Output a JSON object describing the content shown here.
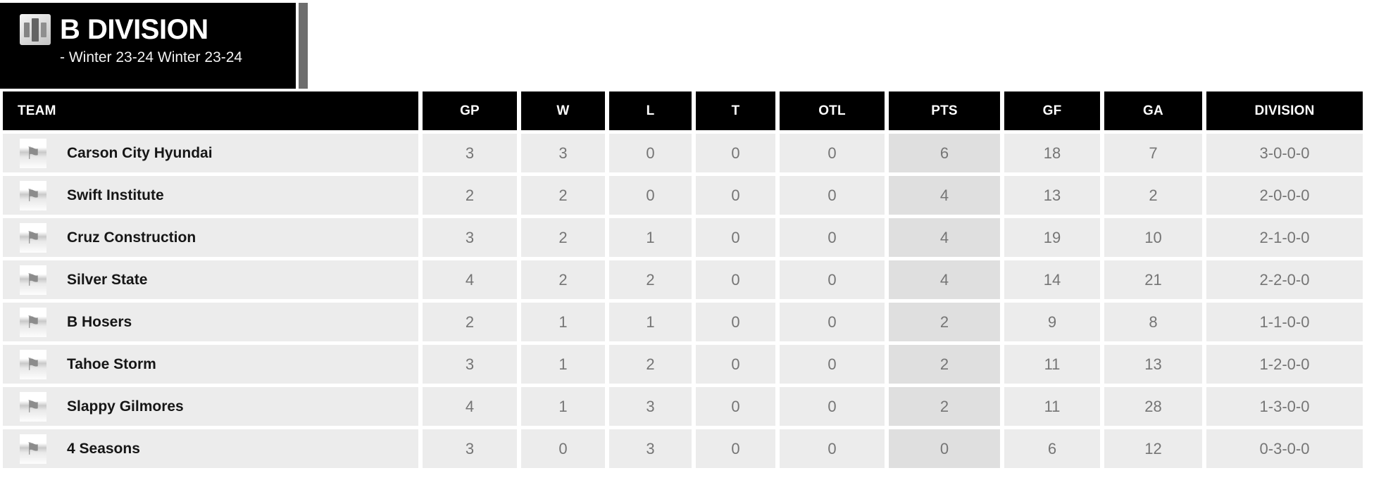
{
  "header": {
    "title": "B DIVISION",
    "subtitle": "- Winter 23-24 Winter 23-24",
    "icon": "stats-bars-icon"
  },
  "table": {
    "columns": [
      "TEAM",
      "GP",
      "W",
      "L",
      "T",
      "OTL",
      "PTS",
      "GF",
      "GA",
      "DIVISION"
    ],
    "column_keys": [
      "team",
      "gp",
      "w",
      "l",
      "t",
      "otl",
      "pts",
      "gf",
      "ga",
      "division"
    ],
    "rows": [
      {
        "team": "Carson City Hyundai",
        "gp": "3",
        "w": "3",
        "l": "0",
        "t": "0",
        "otl": "0",
        "pts": "6",
        "gf": "18",
        "ga": "7",
        "division": "3-0-0-0"
      },
      {
        "team": "Swift Institute",
        "gp": "2",
        "w": "2",
        "l": "0",
        "t": "0",
        "otl": "0",
        "pts": "4",
        "gf": "13",
        "ga": "2",
        "division": "2-0-0-0"
      },
      {
        "team": "Cruz Construction",
        "gp": "3",
        "w": "2",
        "l": "1",
        "t": "0",
        "otl": "0",
        "pts": "4",
        "gf": "19",
        "ga": "10",
        "division": "2-1-0-0"
      },
      {
        "team": "Silver State",
        "gp": "4",
        "w": "2",
        "l": "2",
        "t": "0",
        "otl": "0",
        "pts": "4",
        "gf": "14",
        "ga": "21",
        "division": "2-2-0-0"
      },
      {
        "team": "B Hosers",
        "gp": "2",
        "w": "1",
        "l": "1",
        "t": "0",
        "otl": "0",
        "pts": "2",
        "gf": "9",
        "ga": "8",
        "division": "1-1-0-0"
      },
      {
        "team": "Tahoe Storm",
        "gp": "3",
        "w": "1",
        "l": "2",
        "t": "0",
        "otl": "0",
        "pts": "2",
        "gf": "11",
        "ga": "13",
        "division": "1-2-0-0"
      },
      {
        "team": "Slappy Gilmores",
        "gp": "4",
        "w": "1",
        "l": "3",
        "t": "0",
        "otl": "0",
        "pts": "2",
        "gf": "11",
        "ga": "28",
        "division": "1-3-0-0"
      },
      {
        "team": "4 Seasons",
        "gp": "3",
        "w": "0",
        "l": "3",
        "t": "0",
        "otl": "0",
        "pts": "0",
        "gf": "6",
        "ga": "12",
        "division": "0-3-0-0"
      }
    ]
  },
  "colors": {
    "header_black": "#000000",
    "row_background": "#ececec",
    "pts_column_background": "#dfdfdf",
    "number_text": "#757575",
    "team_text": "#161616",
    "scrollbar_gray": "#6e6e6e",
    "flag_gray": "#8c8c8c"
  }
}
